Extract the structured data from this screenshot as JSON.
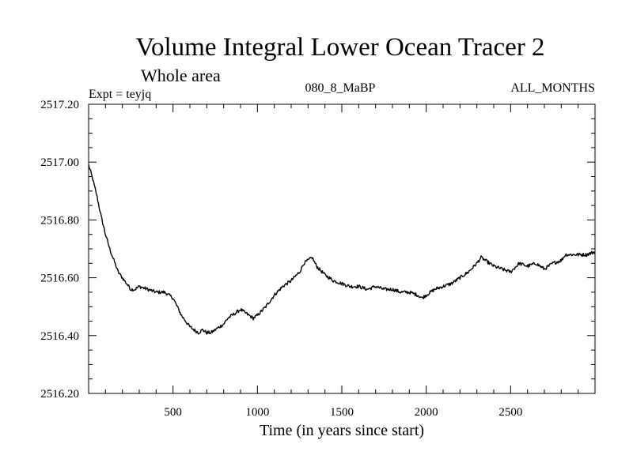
{
  "chart_data": {
    "type": "line",
    "title": "Volume Integral Lower Ocean Tracer 2",
    "subtitle": "Whole area",
    "experiment": "Expt = teyjq",
    "run_label": "080_8_MaBP",
    "months_label": "ALL_MONTHS",
    "xlabel": "Time (in years since start)",
    "ylabel": "",
    "xlim": [
      0,
      3000
    ],
    "ylim": [
      2516.2,
      2517.2
    ],
    "x_ticks": [
      500,
      1000,
      1500,
      2000,
      2500
    ],
    "x_tick_labels": [
      "500",
      "1000",
      "1500",
      "2000",
      "2500"
    ],
    "y_ticks": [
      2516.2,
      2516.4,
      2516.6,
      2516.8,
      2517.0,
      2517.2
    ],
    "y_tick_labels": [
      "2516.20",
      "2516.40",
      "2516.60",
      "2516.80",
      "2517.00",
      "2517.20"
    ],
    "grid": false,
    "series": [
      {
        "name": "Lower Ocean Tracer 2",
        "color": "#000000",
        "x": [
          0,
          25,
          50,
          75,
          100,
          125,
          150,
          175,
          200,
          225,
          250,
          275,
          300,
          350,
          400,
          450,
          500,
          525,
          550,
          575,
          600,
          625,
          650,
          675,
          700,
          725,
          750,
          775,
          800,
          825,
          850,
          875,
          900,
          925,
          950,
          975,
          1000,
          1050,
          1100,
          1150,
          1200,
          1250,
          1275,
          1300,
          1325,
          1350,
          1400,
          1450,
          1500,
          1550,
          1600,
          1650,
          1700,
          1750,
          1800,
          1850,
          1900,
          1950,
          1975,
          2000,
          2050,
          2100,
          2150,
          2200,
          2250,
          2300,
          2325,
          2350,
          2400,
          2450,
          2500,
          2550,
          2600,
          2650,
          2700,
          2750,
          2800,
          2825,
          2850,
          2900,
          2950,
          3000
        ],
        "y": [
          2516.99,
          2516.94,
          2516.88,
          2516.81,
          2516.75,
          2516.7,
          2516.66,
          2516.62,
          2516.6,
          2516.58,
          2516.56,
          2516.56,
          2516.57,
          2516.56,
          2516.55,
          2516.55,
          2516.53,
          2516.5,
          2516.47,
          2516.45,
          2516.43,
          2516.42,
          2516.41,
          2516.42,
          2516.41,
          2516.41,
          2516.42,
          2516.43,
          2516.44,
          2516.46,
          2516.47,
          2516.48,
          2516.49,
          2516.48,
          2516.47,
          2516.46,
          2516.47,
          2516.5,
          2516.54,
          2516.57,
          2516.59,
          2516.62,
          2516.65,
          2516.66,
          2516.67,
          2516.64,
          2516.61,
          2516.59,
          2516.58,
          2516.57,
          2516.57,
          2516.56,
          2516.57,
          2516.56,
          2516.56,
          2516.55,
          2516.55,
          2516.54,
          2516.53,
          2516.54,
          2516.56,
          2516.57,
          2516.58,
          2516.6,
          2516.62,
          2516.65,
          2516.67,
          2516.66,
          2516.64,
          2516.63,
          2516.62,
          2516.65,
          2516.64,
          2516.65,
          2516.63,
          2516.65,
          2516.66,
          2516.68,
          2516.68,
          2516.68,
          2516.68,
          2516.69
        ]
      }
    ]
  }
}
